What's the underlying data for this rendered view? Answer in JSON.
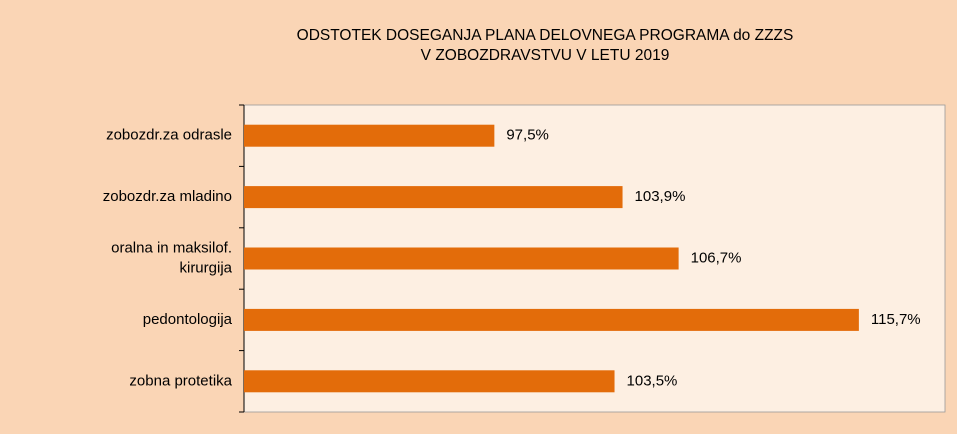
{
  "chart_data": {
    "type": "barh",
    "title": "ODSTOTEK  DOSEGANJA PLANA DELOVNEGA PROGRAMA  do ZZZS\nV ZOBOZDRAVSTVU  V LETU 2019",
    "categories": [
      "zobozdr.za odrasle",
      "zobozdr.za mladino",
      "oralna in maksilof.\nkirurgija",
      "pedontologija",
      "zobna protetika"
    ],
    "values": [
      97.5,
      103.9,
      106.7,
      115.7,
      103.5
    ],
    "value_labels": [
      "97,5%",
      "103,9%",
      "106,7%",
      "115,7%",
      "103,5%"
    ],
    "color": "#e36c0a",
    "xlim": [
      85,
      120
    ]
  }
}
